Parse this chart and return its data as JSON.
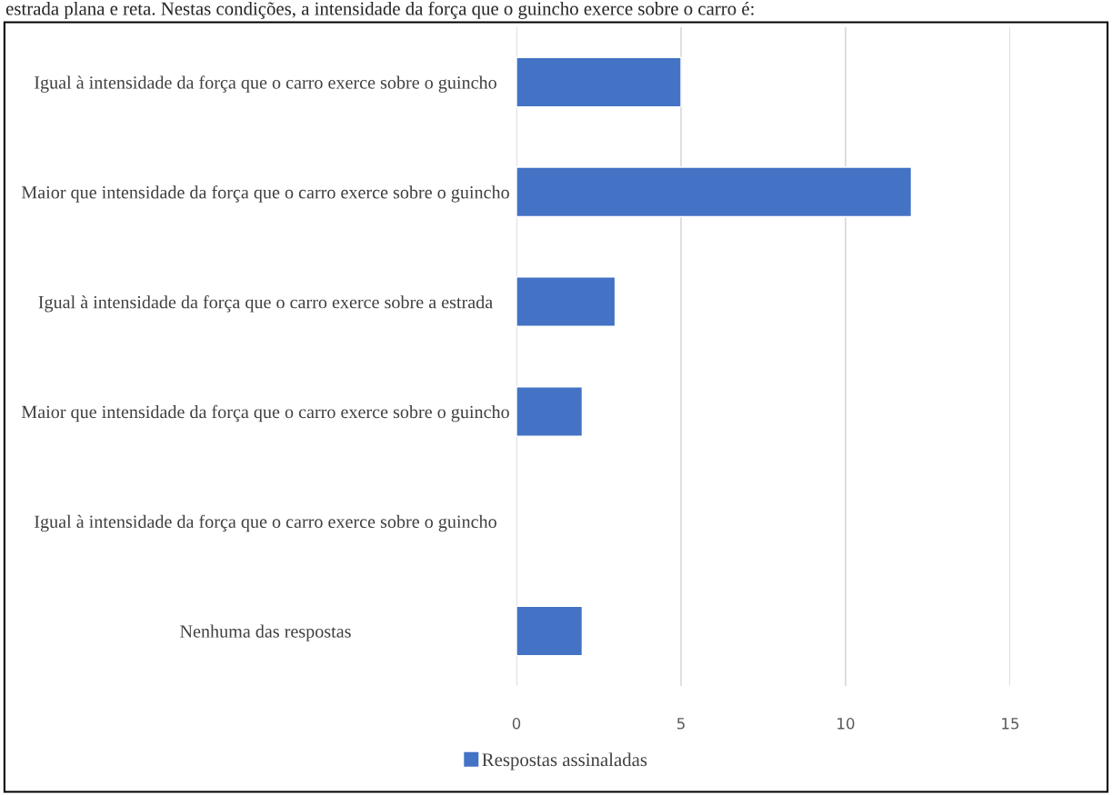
{
  "chart_data": {
    "type": "bar",
    "orientation": "horizontal",
    "categories": [
      "Igual à intensidade da força que o carro exerce sobre o guincho",
      "Maior que intensidade da força que o carro exerce sobre o guincho",
      "Igual à intensidade da força que o carro exerce sobre a estrada",
      "Maior que intensidade da força que o carro exerce sobre o guincho",
      "Igual à intensidade da força que o carro exerce sobre o guincho",
      "Nenhuma das respostas"
    ],
    "series": [
      {
        "name": "Respostas assinaladas",
        "color": "#4472c4",
        "values": [
          5,
          12,
          3,
          2,
          0,
          2
        ]
      }
    ],
    "xlim": [
      0,
      15
    ],
    "xticks": [
      0,
      5,
      10,
      15
    ],
    "grid": "x",
    "legend": "bottom",
    "annotations": [
      "estrada plana e reta. Nestas condições, a intensidade da força que o guincho exerce sobre o carro é:"
    ]
  }
}
